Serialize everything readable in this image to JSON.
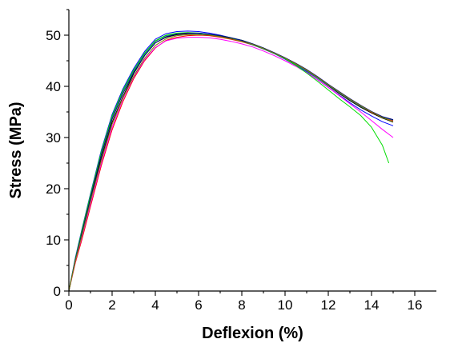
{
  "chart_data": {
    "type": "line",
    "xlabel": "Deflexion (%)",
    "ylabel": "Stress (MPa)",
    "xlim": [
      0,
      17
    ],
    "ylim": [
      0,
      55
    ],
    "xticks": [
      0,
      2,
      4,
      6,
      8,
      10,
      12,
      14,
      16
    ],
    "yticks": [
      0,
      10,
      20,
      30,
      40,
      50
    ],
    "grid": false,
    "legend": "none",
    "series": [
      {
        "color": "#000000",
        "x": [
          0,
          0.3,
          0.6,
          1,
          1.5,
          2,
          2.5,
          3,
          3.5,
          4,
          4.5,
          5,
          5.5,
          6,
          6.5,
          7,
          7.5,
          8,
          8.5,
          9,
          9.5,
          10,
          10.5,
          11,
          11.5,
          12,
          12.5,
          13,
          13.5,
          14,
          14.5,
          15
        ],
        "y": [
          0,
          6,
          11,
          18,
          26,
          33,
          38,
          42.5,
          46,
          48.5,
          49.6,
          50.1,
          50.3,
          50.3,
          50.1,
          49.8,
          49.4,
          48.9,
          48.2,
          47.4,
          46.5,
          45.5,
          44.3,
          43,
          41.6,
          40.1,
          38.6,
          37.2,
          35.9,
          34.8,
          33.8,
          33
        ]
      },
      {
        "color": "#ff0000",
        "x": [
          0,
          0.3,
          0.6,
          1,
          1.5,
          2,
          2.5,
          3,
          3.5,
          4,
          4.5,
          5,
          5.5,
          6,
          6.5,
          7,
          7.5,
          8,
          8.5,
          9,
          9.5,
          10,
          10.5,
          11,
          11.5,
          12,
          12.5,
          13,
          13.5,
          14,
          14.5,
          15
        ],
        "y": [
          0,
          5.5,
          10,
          16.5,
          24.5,
          31.5,
          37,
          41.5,
          45,
          47.5,
          49,
          49.6,
          49.9,
          50,
          49.9,
          49.6,
          49.2,
          48.7,
          48.1,
          47.3,
          46.4,
          45.4,
          44.3,
          43.1,
          41.8,
          40.3,
          38.8,
          37.4,
          36.1,
          34.9,
          34,
          33.3
        ]
      },
      {
        "color": "#0000ff",
        "x": [
          0,
          0.3,
          0.6,
          1,
          1.5,
          2,
          2.5,
          3,
          3.5,
          4,
          4.5,
          5,
          5.5,
          6,
          6.5,
          7,
          7.5,
          8,
          8.5,
          9,
          9.5,
          10,
          10.5,
          11,
          11.5,
          12,
          12.5,
          13,
          13.5,
          14,
          14.5,
          15
        ],
        "y": [
          0,
          6.5,
          12,
          19,
          27.5,
          34.5,
          39.5,
          43.5,
          46.8,
          49.2,
          50.3,
          50.7,
          50.8,
          50.7,
          50.4,
          50,
          49.5,
          48.9,
          48.2,
          47.4,
          46.4,
          45.3,
          44.1,
          42.8,
          41.3,
          39.8,
          38.3,
          36.8,
          35.4,
          34.2,
          33.1,
          32.3
        ]
      },
      {
        "color": "#008080",
        "x": [
          0,
          0.3,
          0.6,
          1,
          1.5,
          2,
          2.5,
          3,
          3.5,
          4,
          4.5,
          5,
          5.5,
          6,
          6.5,
          7,
          7.5,
          8,
          8.5,
          9,
          9.5,
          10,
          10.5,
          11,
          11.5,
          12,
          12.5,
          13,
          13.5,
          14,
          14.5,
          15
        ],
        "y": [
          0,
          6.2,
          11.5,
          18.5,
          27,
          34,
          39,
          43,
          46.3,
          48.8,
          49.9,
          50.3,
          50.4,
          50.3,
          50.1,
          49.7,
          49.3,
          48.8,
          48.1,
          47.3,
          46.4,
          45.4,
          44.2,
          43,
          41.6,
          40.2,
          38.8,
          37.4,
          36.1,
          35,
          34,
          33.4
        ]
      },
      {
        "color": "#ff00ff",
        "x": [
          0,
          0.3,
          0.6,
          1,
          1.5,
          2,
          2.5,
          3,
          3.5,
          4,
          4.5,
          5,
          5.5,
          6,
          6.5,
          7,
          7.5,
          8,
          8.5,
          9,
          9.5,
          10,
          10.5,
          11,
          11.5,
          12,
          12.5,
          13,
          13.5,
          14,
          14.5,
          15
        ],
        "y": [
          0,
          5.8,
          10.5,
          17,
          25,
          32,
          37.5,
          41.8,
          45.2,
          47.6,
          48.9,
          49.4,
          49.6,
          49.6,
          49.5,
          49.2,
          48.8,
          48.3,
          47.7,
          46.9,
          46,
          45,
          43.9,
          42.7,
          41.3,
          39.8,
          38.2,
          36.6,
          35,
          33.3,
          31.6,
          30
        ]
      },
      {
        "color": "#00dd00",
        "x": [
          0,
          0.3,
          0.6,
          1,
          1.5,
          2,
          2.5,
          3,
          3.5,
          4,
          4.5,
          5,
          5.5,
          6,
          6.5,
          7,
          7.5,
          8,
          8.5,
          9,
          9.5,
          10,
          10.5,
          11,
          11.5,
          12,
          12.5,
          13,
          13.5,
          14,
          14.5,
          14.8
        ],
        "y": [
          0,
          6.3,
          11.8,
          18.8,
          27.2,
          34.2,
          39.2,
          43.2,
          46.5,
          48.9,
          50,
          50.4,
          50.5,
          50.4,
          50.2,
          49.9,
          49.5,
          49,
          48.3,
          47.5,
          46.5,
          45.4,
          44.1,
          42.6,
          41,
          39.3,
          37.6,
          36,
          34.3,
          32,
          28.5,
          25
        ]
      },
      {
        "color": "#000080",
        "x": [
          0,
          0.3,
          0.6,
          1,
          1.5,
          2,
          2.5,
          3,
          3.5,
          4,
          4.5,
          5,
          5.5,
          6,
          6.5,
          7,
          7.5,
          8,
          8.5,
          9,
          9.5,
          10,
          10.5,
          11,
          11.5,
          12,
          12.5,
          13,
          13.5,
          14,
          14.5,
          15
        ],
        "y": [
          0,
          6.1,
          11.3,
          18.2,
          26.6,
          33.6,
          38.6,
          42.7,
          46,
          48.5,
          49.7,
          50.2,
          50.4,
          50.4,
          50.2,
          49.9,
          49.5,
          49,
          48.3,
          47.5,
          46.6,
          45.6,
          44.5,
          43.3,
          41.9,
          40.4,
          39,
          37.6,
          36.3,
          35.1,
          34.1,
          33.5
        ]
      },
      {
        "color": "#808000",
        "x": [
          0,
          0.3,
          0.6,
          1,
          1.5,
          2,
          2.5,
          3,
          3.5,
          4,
          4.5,
          5,
          5.5,
          6,
          6.5,
          7,
          7.5,
          8,
          8.5,
          9,
          9.5,
          10,
          10.5,
          11,
          11.5,
          12,
          12.5,
          13,
          13.5,
          14,
          14.5,
          15
        ],
        "y": [
          0,
          5.9,
          10.8,
          17.5,
          25.5,
          32.6,
          37.8,
          42,
          45.5,
          48,
          49.3,
          49.9,
          50.1,
          50.1,
          50,
          49.7,
          49.3,
          48.8,
          48.2,
          47.4,
          46.5,
          45.5,
          44.4,
          43.2,
          41.8,
          40.3,
          38.9,
          37.5,
          36.2,
          35,
          33.9,
          33.1
        ]
      }
    ]
  }
}
